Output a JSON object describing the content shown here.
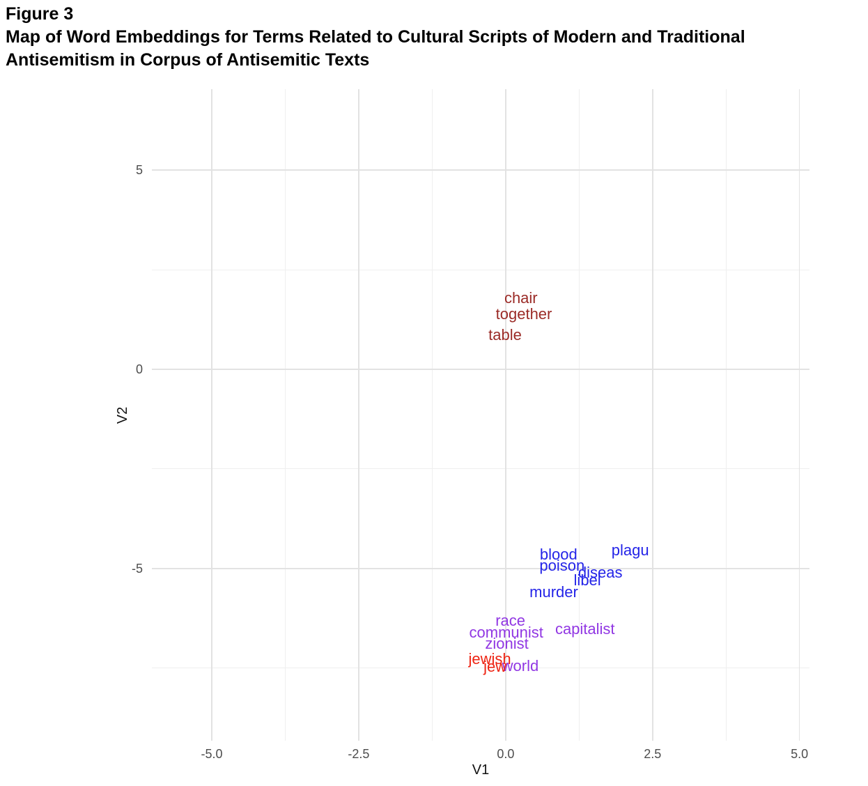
{
  "header": {
    "figure_label": "Figure 3",
    "title_lines": [
      "Map of Word Embeddings for Terms Related to Cultural Scripts of Modern and Traditional",
      "Antisemitism in Corpus of Antisemitic Texts"
    ]
  },
  "chart_data": {
    "type": "scatter",
    "subtype": "text-label-scatter",
    "title": "Map of Word Embeddings for Terms Related to Cultural Scripts of Modern and Traditional Antisemitism in Corpus of Antisemitic Texts",
    "xlabel": "V1",
    "ylabel": "V2",
    "xlim": [
      -6.0,
      5.2
    ],
    "ylim": [
      -9.3,
      7.0
    ],
    "grid": true,
    "legend_position": "none",
    "axes": {
      "x": {
        "major_ticks": [
          -5.0,
          -2.5,
          0.0,
          2.5,
          5.0
        ],
        "tick_labels": [
          "-5.0",
          "-2.5",
          "0.0",
          "2.5",
          "5.0"
        ],
        "minor_ticks": [
          -3.75,
          -1.25,
          1.25,
          3.75
        ]
      },
      "y": {
        "major_ticks": [
          5,
          0,
          -5
        ],
        "tick_labels": [
          "5",
          "0",
          "-5"
        ],
        "minor_ticks": [
          2.5,
          -2.5,
          -7.5
        ]
      }
    },
    "grid_colors": {
      "major": "#e2e2e2",
      "minor": "#efefef"
    },
    "series": [
      {
        "name": "dark_red_words",
        "color": "#9B2B27",
        "points": [
          {
            "label": "chair",
            "x": 0.26,
            "y": 1.78
          },
          {
            "label": "together",
            "x": 0.31,
            "y": 1.38
          },
          {
            "label": "table",
            "x": -0.01,
            "y": 0.86
          }
        ]
      },
      {
        "name": "blue_words",
        "color": "#2424E8",
        "points": [
          {
            "label": "blood",
            "x": 0.9,
            "y": -4.65
          },
          {
            "label": "plagu",
            "x": 2.12,
            "y": -4.55
          },
          {
            "label": "poison",
            "x": 0.96,
            "y": -4.93
          },
          {
            "label": "diseas",
            "x": 1.61,
            "y": -5.1
          },
          {
            "label": "libel",
            "x": 1.39,
            "y": -5.3
          },
          {
            "label": "murder",
            "x": 0.82,
            "y": -5.59
          }
        ]
      },
      {
        "name": "purple_words",
        "color": "#9137E3",
        "points": [
          {
            "label": "race",
            "x": 0.08,
            "y": -6.31
          },
          {
            "label": "communist",
            "x": 0.01,
            "y": -6.61
          },
          {
            "label": "zionist",
            "x": 0.02,
            "y": -6.89
          },
          {
            "label": "capitalist",
            "x": 1.35,
            "y": -6.52
          },
          {
            "label": "world",
            "x": 0.25,
            "y": -7.45
          }
        ]
      },
      {
        "name": "red_words",
        "color": "#EE2413",
        "points": [
          {
            "label": "jewish",
            "x": -0.27,
            "y": -7.27
          },
          {
            "label": "jew",
            "x": -0.18,
            "y": -7.47
          }
        ]
      }
    ]
  }
}
